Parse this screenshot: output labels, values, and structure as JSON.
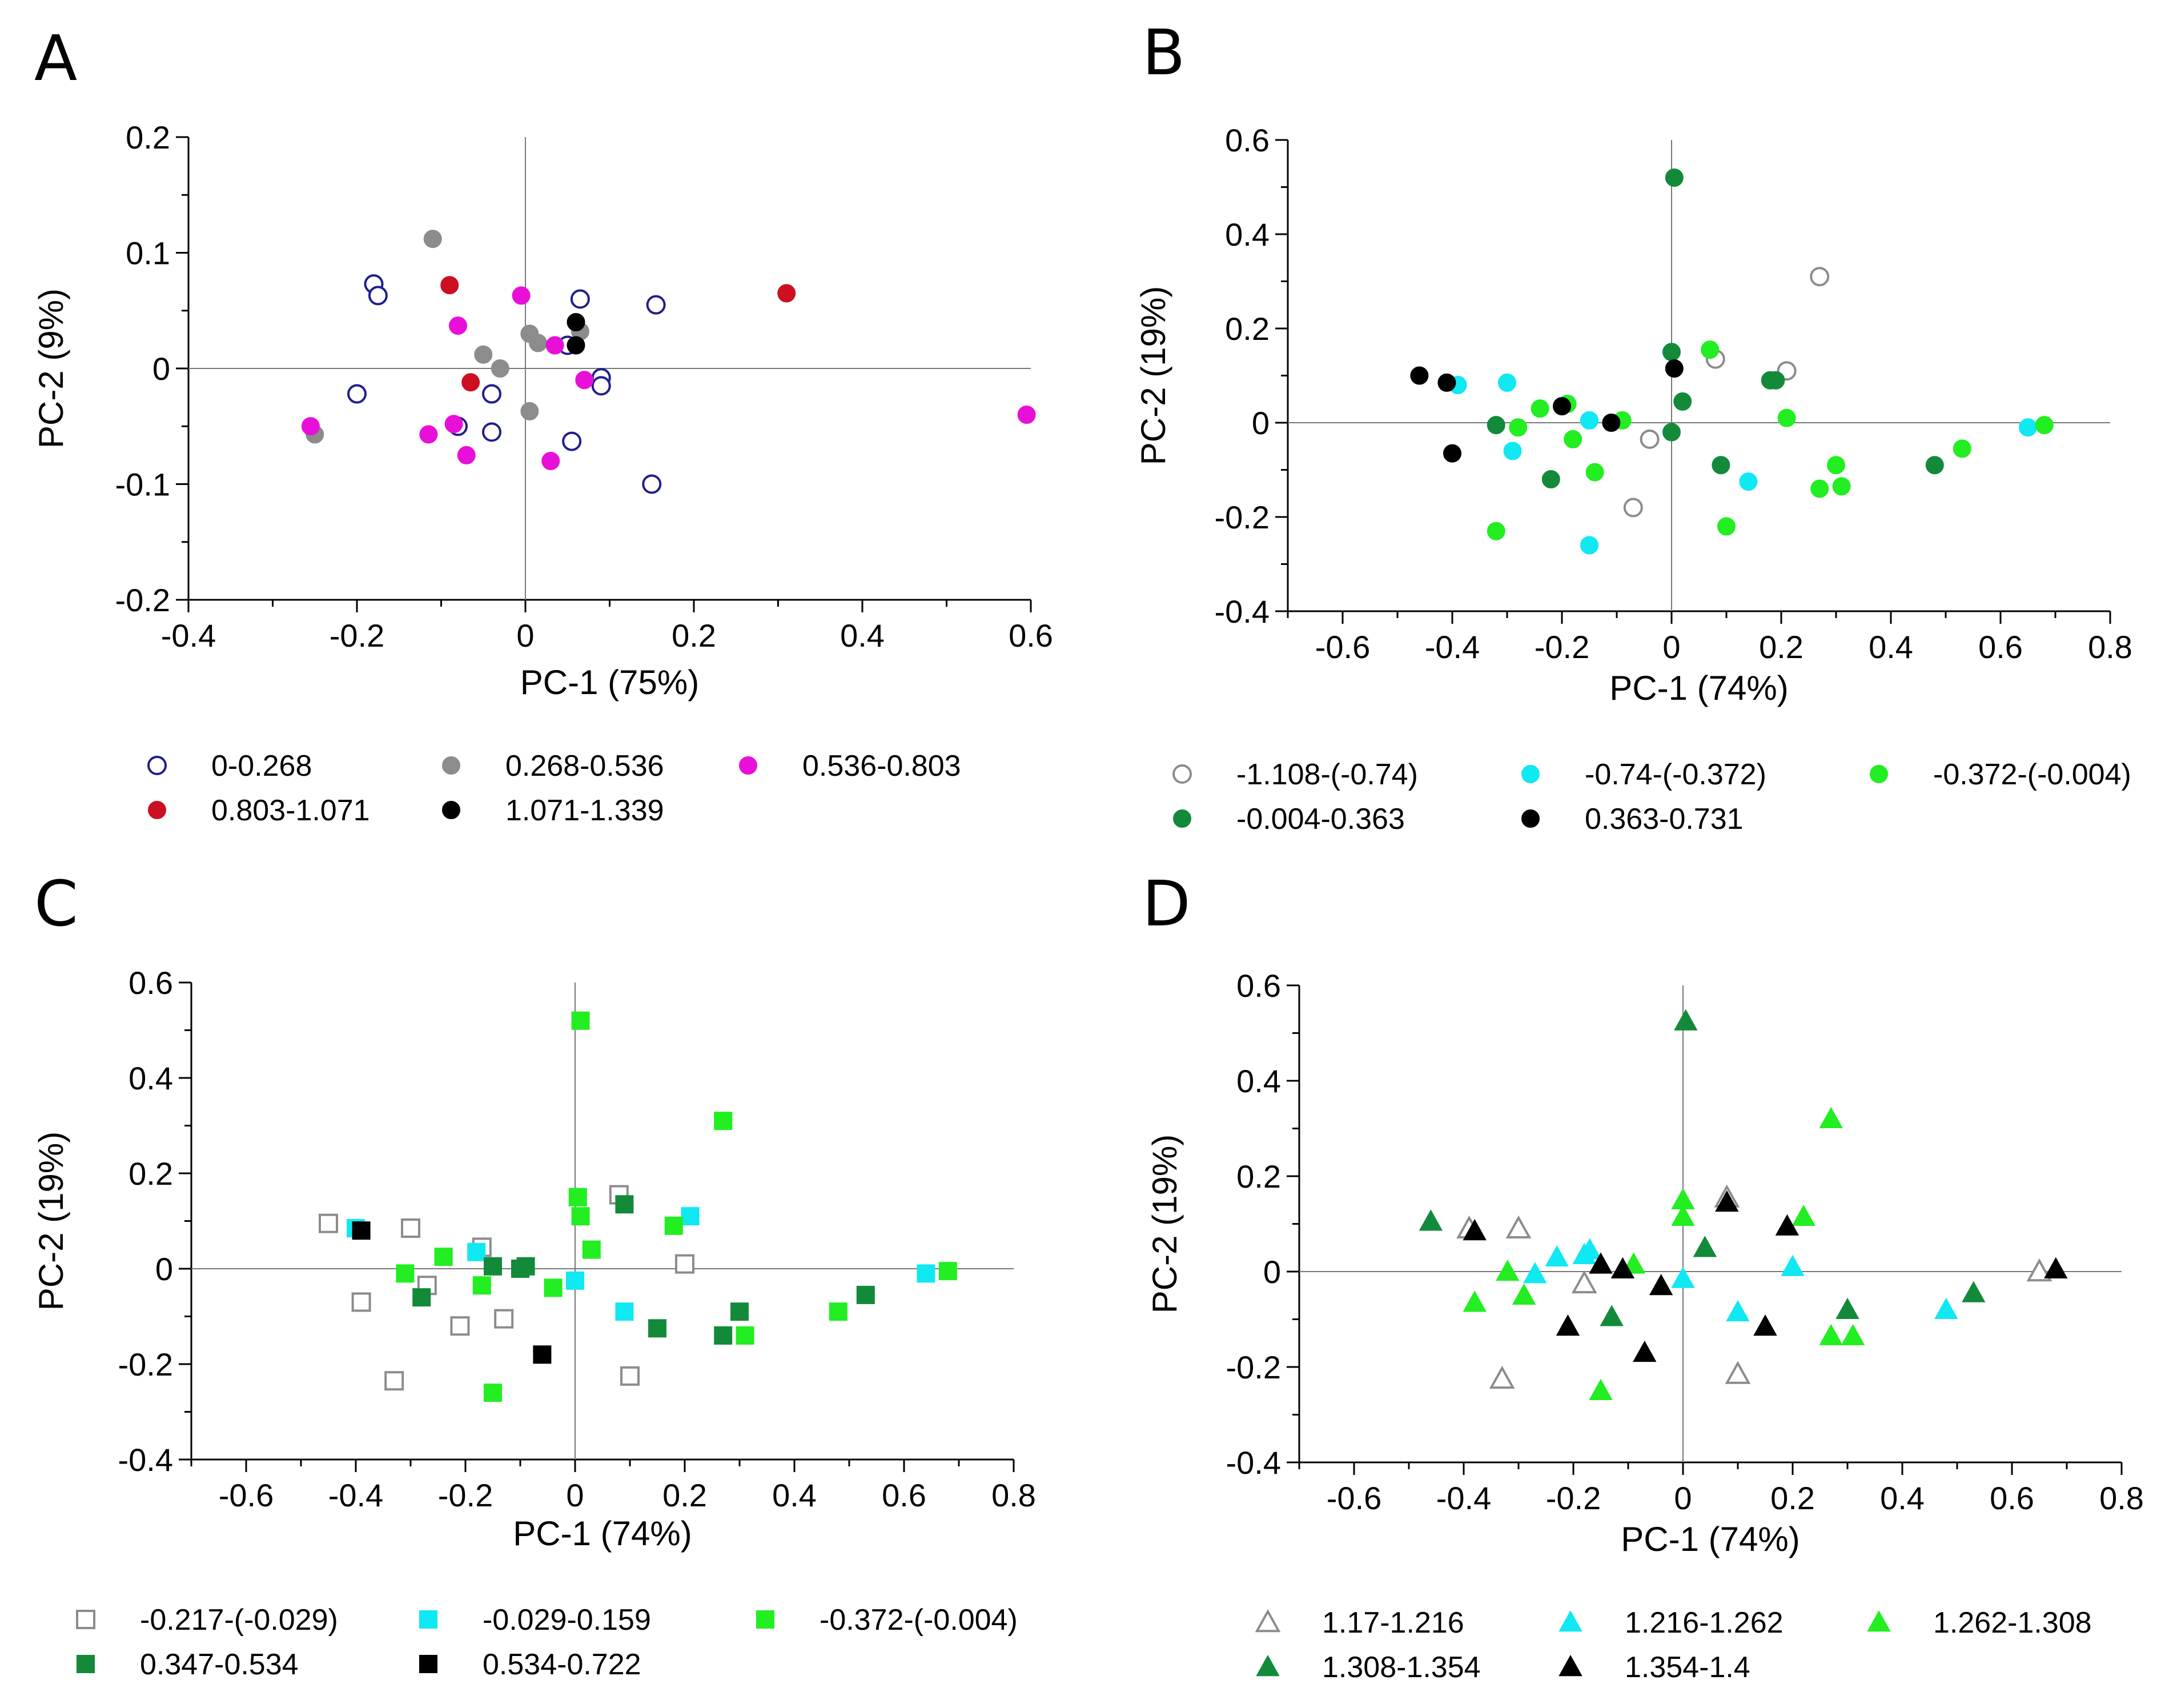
{
  "charts": [
    {
      "panel": "A",
      "type": "scatter",
      "marker": "circle",
      "xlabel": "PC-1 (75%)",
      "ylabel": "PC-2 (9%)",
      "xlim": [
        -0.4,
        0.6
      ],
      "ylim": [
        -0.2,
        0.2
      ],
      "xticks": [
        -0.4,
        -0.2,
        0,
        0.2,
        0.4,
        0.6
      ],
      "yticks": [
        -0.2,
        -0.1,
        0,
        0.1,
        0.2
      ],
      "xtick_labels": [
        "-0.4",
        "-0.2",
        "0",
        "0.2",
        "0.4",
        "0.6"
      ],
      "ytick_labels": [
        "-0.2",
        "-0.1",
        "0",
        "0.1",
        "0.2"
      ],
      "series": [
        {
          "name": "0-0.268",
          "color": "#1f1f8c",
          "filled": false,
          "points": [
            [
              -0.18,
              0.073
            ],
            [
              -0.175,
              0.063
            ],
            [
              -0.2,
              -0.022
            ],
            [
              -0.08,
              -0.05
            ],
            [
              -0.04,
              -0.055
            ],
            [
              -0.04,
              -0.022
            ],
            [
              0.065,
              0.06
            ],
            [
              0.155,
              0.055
            ],
            [
              0.09,
              -0.008
            ],
            [
              0.09,
              -0.015
            ],
            [
              0.05,
              0.02
            ],
            [
              0.055,
              -0.063
            ],
            [
              0.15,
              -0.1
            ]
          ]
        },
        {
          "name": "0.268-0.536",
          "color": "#8c8c8c",
          "filled": true,
          "points": [
            [
              -0.11,
              0.112
            ],
            [
              -0.25,
              -0.057
            ],
            [
              -0.05,
              0.012
            ],
            [
              -0.03,
              0.0
            ],
            [
              0.005,
              0.03
            ],
            [
              0.015,
              0.022
            ],
            [
              0.005,
              -0.037
            ],
            [
              0.065,
              0.032
            ]
          ]
        },
        {
          "name": "0.536-0.803",
          "color": "#e810d8",
          "filled": true,
          "points": [
            [
              -0.255,
              -0.05
            ],
            [
              -0.115,
              -0.057
            ],
            [
              -0.085,
              -0.048
            ],
            [
              -0.07,
              -0.075
            ],
            [
              -0.08,
              0.037
            ],
            [
              -0.005,
              0.063
            ],
            [
              0.035,
              0.02
            ],
            [
              0.07,
              -0.01
            ],
            [
              0.03,
              -0.08
            ],
            [
              0.595,
              -0.04
            ]
          ]
        },
        {
          "name": "0.803-1.071",
          "color": "#cc1022",
          "filled": true,
          "points": [
            [
              -0.09,
              0.072
            ],
            [
              -0.065,
              -0.012
            ],
            [
              0.31,
              0.065
            ]
          ]
        },
        {
          "name": "1.071-1.339",
          "color": "#000000",
          "filled": true,
          "points": [
            [
              0.06,
              0.04
            ],
            [
              0.06,
              0.02
            ]
          ]
        }
      ]
    },
    {
      "panel": "B",
      "type": "scatter",
      "marker": "circle",
      "xlabel": "PC-1 (74%)",
      "ylabel": "PC-2 (19%)",
      "xlim": [
        -0.7,
        0.8
      ],
      "ylim": [
        -0.4,
        0.6
      ],
      "xticks": [
        -0.6,
        -0.4,
        -0.2,
        0,
        0.2,
        0.4,
        0.6,
        0.8
      ],
      "yticks": [
        -0.4,
        -0.2,
        0,
        0.2,
        0.4,
        0.6
      ],
      "xtick_labels": [
        "-0.6",
        "-0.4",
        "-0.2",
        "0",
        "0.2",
        "0.4",
        "0.6",
        "0.8"
      ],
      "ytick_labels": [
        "-0.4",
        "-0.2",
        "0",
        "0.2",
        "0.4",
        "0.6"
      ],
      "series": [
        {
          "name": "-1.108-(-0.74)",
          "color": "#8c8c8c",
          "filled": false,
          "points": [
            [
              0.27,
              0.31
            ],
            [
              0.08,
              0.135
            ],
            [
              0.21,
              0.11
            ],
            [
              -0.04,
              -0.035
            ],
            [
              -0.07,
              -0.18
            ]
          ]
        },
        {
          "name": "-0.74-(-0.372)",
          "color": "#10e8f2",
          "filled": true,
          "points": [
            [
              -0.39,
              0.08
            ],
            [
              -0.3,
              0.085
            ],
            [
              -0.29,
              -0.06
            ],
            [
              -0.15,
              0.005
            ],
            [
              -0.15,
              -0.26
            ],
            [
              0.14,
              -0.125
            ],
            [
              0.65,
              -0.01
            ]
          ]
        },
        {
          "name": "-0.372-(-0.004)",
          "color": "#22ee22",
          "filled": true,
          "points": [
            [
              -0.32,
              -0.23
            ],
            [
              -0.28,
              -0.01
            ],
            [
              -0.24,
              0.03
            ],
            [
              -0.19,
              0.04
            ],
            [
              -0.18,
              -0.035
            ],
            [
              -0.14,
              -0.105
            ],
            [
              -0.09,
              0.005
            ],
            [
              0.07,
              0.155
            ],
            [
              0.1,
              -0.22
            ],
            [
              0.21,
              0.01
            ],
            [
              0.27,
              -0.14
            ],
            [
              0.3,
              -0.09
            ],
            [
              0.31,
              -0.135
            ],
            [
              0.53,
              -0.055
            ],
            [
              0.68,
              -0.005
            ]
          ]
        },
        {
          "name": "-0.004-0.363",
          "color": "#138a3a",
          "filled": true,
          "points": [
            [
              0.005,
              0.52
            ],
            [
              0.0,
              0.15
            ],
            [
              0.0,
              -0.02
            ],
            [
              0.02,
              0.045
            ],
            [
              0.09,
              -0.09
            ],
            [
              0.18,
              0.09
            ],
            [
              0.19,
              0.09
            ],
            [
              0.48,
              -0.09
            ],
            [
              -0.22,
              -0.12
            ],
            [
              -0.32,
              -0.005
            ]
          ]
        },
        {
          "name": "0.363-0.731",
          "color": "#000000",
          "filled": true,
          "points": [
            [
              -0.46,
              0.1
            ],
            [
              -0.41,
              0.085
            ],
            [
              -0.4,
              -0.065
            ],
            [
              -0.2,
              0.035
            ],
            [
              -0.11,
              0.0
            ],
            [
              0.005,
              0.115
            ]
          ]
        }
      ]
    },
    {
      "panel": "C",
      "type": "scatter",
      "marker": "square",
      "xlabel": "PC-1 (74%)",
      "ylabel": "PC-2 (19%)",
      "xlim": [
        -0.7,
        0.8
      ],
      "ylim": [
        -0.4,
        0.6
      ],
      "xticks": [
        -0.6,
        -0.4,
        -0.2,
        0,
        0.2,
        0.4,
        0.6,
        0.8
      ],
      "yticks": [
        -0.4,
        -0.2,
        0,
        0.2,
        0.4,
        0.6
      ],
      "xtick_labels": [
        "-0.6",
        "-0.4",
        "-0.2",
        "0",
        "0.2",
        "0.4",
        "0.6",
        "0.8"
      ],
      "ytick_labels": [
        "-0.4",
        "-0.2",
        "0",
        "0.2",
        "0.4",
        "0.6"
      ],
      "series": [
        {
          "name": "-0.217-(-0.029)",
          "color": "#8c8c8c",
          "filled": false,
          "points": [
            [
              -0.45,
              0.095
            ],
            [
              -0.3,
              0.085
            ],
            [
              -0.27,
              -0.035
            ],
            [
              -0.17,
              0.045
            ],
            [
              -0.39,
              -0.07
            ],
            [
              -0.33,
              -0.235
            ],
            [
              -0.21,
              -0.12
            ],
            [
              -0.13,
              -0.105
            ],
            [
              0.08,
              0.155
            ],
            [
              0.2,
              0.01
            ],
            [
              0.1,
              -0.225
            ]
          ]
        },
        {
          "name": "-0.029-0.159",
          "color": "#10e8f2",
          "filled": true,
          "points": [
            [
              -0.4,
              0.085
            ],
            [
              -0.18,
              0.035
            ],
            [
              0.0,
              -0.025
            ],
            [
              0.09,
              -0.09
            ],
            [
              0.21,
              0.11
            ],
            [
              0.64,
              -0.01
            ]
          ]
        },
        {
          "name": "-0.372-(-0.004)",
          "color": "#22ee22",
          "filled": true,
          "points": [
            [
              0.01,
              0.52
            ],
            [
              0.005,
              0.15
            ],
            [
              0.01,
              0.11
            ],
            [
              0.03,
              0.04
            ],
            [
              0.27,
              0.31
            ],
            [
              0.18,
              0.09
            ],
            [
              -0.31,
              -0.01
            ],
            [
              -0.24,
              0.025
            ],
            [
              -0.17,
              -0.035
            ],
            [
              -0.15,
              -0.26
            ],
            [
              -0.04,
              -0.04
            ],
            [
              0.31,
              -0.14
            ],
            [
              0.48,
              -0.09
            ],
            [
              0.68,
              -0.005
            ]
          ]
        },
        {
          "name": "0.347-0.534",
          "color": "#138a3a",
          "filled": true,
          "points": [
            [
              0.09,
              0.135
            ],
            [
              -0.28,
              -0.06
            ],
            [
              -0.15,
              0.005
            ],
            [
              -0.1,
              0.0
            ],
            [
              -0.09,
              0.005
            ],
            [
              0.15,
              -0.125
            ],
            [
              0.27,
              -0.14
            ],
            [
              0.3,
              -0.09
            ],
            [
              0.53,
              -0.055
            ]
          ]
        },
        {
          "name": "0.534-0.722",
          "color": "#000000",
          "filled": true,
          "points": [
            [
              -0.39,
              0.08
            ],
            [
              -0.06,
              -0.18
            ]
          ]
        }
      ]
    },
    {
      "panel": "D",
      "type": "scatter",
      "marker": "triangle",
      "xlabel": "PC-1 (74%)",
      "ylabel": "PC-2 (19%)",
      "xlim": [
        -0.7,
        0.8
      ],
      "ylim": [
        -0.4,
        0.6
      ],
      "xticks": [
        -0.6,
        -0.4,
        -0.2,
        0,
        0.2,
        0.4,
        0.6,
        0.8
      ],
      "yticks": [
        -0.4,
        -0.2,
        0,
        0.2,
        0.4,
        0.6
      ],
      "xtick_labels": [
        "-0.6",
        "-0.4",
        "-0.2",
        "0",
        "0.2",
        "0.4",
        "0.6",
        "0.8"
      ],
      "ytick_labels": [
        "-0.4",
        "-0.2",
        "0",
        "0.2",
        "0.4",
        "0.6"
      ],
      "series": [
        {
          "name": "1.17-1.216",
          "color": "#8c8c8c",
          "filled": false,
          "points": [
            [
              -0.39,
              0.09
            ],
            [
              -0.3,
              0.09
            ],
            [
              -0.18,
              -0.025
            ],
            [
              -0.33,
              -0.225
            ],
            [
              0.08,
              0.155
            ],
            [
              0.1,
              -0.215
            ],
            [
              0.65,
              0.0
            ]
          ]
        },
        {
          "name": "1.216-1.262",
          "color": "#10e8f2",
          "filled": true,
          "points": [
            [
              -0.27,
              -0.005
            ],
            [
              -0.23,
              0.03
            ],
            [
              -0.18,
              0.035
            ],
            [
              -0.17,
              0.045
            ],
            [
              0.0,
              -0.015
            ],
            [
              0.1,
              -0.085
            ],
            [
              0.2,
              0.01
            ],
            [
              0.48,
              -0.08
            ]
          ]
        },
        {
          "name": "1.262-1.308",
          "color": "#22ee22",
          "filled": true,
          "points": [
            [
              0.0,
              0.15
            ],
            [
              0.0,
              0.115
            ],
            [
              0.27,
              0.32
            ],
            [
              0.22,
              0.115
            ],
            [
              -0.32,
              0.0
            ],
            [
              -0.29,
              -0.05
            ],
            [
              -0.38,
              -0.065
            ],
            [
              -0.15,
              -0.25
            ],
            [
              -0.09,
              0.015
            ],
            [
              0.27,
              -0.135
            ],
            [
              0.31,
              -0.135
            ]
          ]
        },
        {
          "name": "1.308-1.354",
          "color": "#138a3a",
          "filled": true,
          "points": [
            [
              0.005,
              0.525
            ],
            [
              -0.46,
              0.105
            ],
            [
              0.04,
              0.05
            ],
            [
              -0.13,
              -0.095
            ],
            [
              0.3,
              -0.08
            ],
            [
              0.53,
              -0.045
            ]
          ]
        },
        {
          "name": "1.354-1.4",
          "color": "#000000",
          "filled": true,
          "points": [
            [
              -0.38,
              0.085
            ],
            [
              -0.15,
              0.015
            ],
            [
              -0.11,
              0.005
            ],
            [
              -0.04,
              -0.03
            ],
            [
              -0.07,
              -0.17
            ],
            [
              -0.21,
              -0.115
            ],
            [
              0.08,
              0.145
            ],
            [
              0.15,
              -0.115
            ],
            [
              0.19,
              0.095
            ],
            [
              0.68,
              0.005
            ]
          ]
        }
      ]
    }
  ]
}
